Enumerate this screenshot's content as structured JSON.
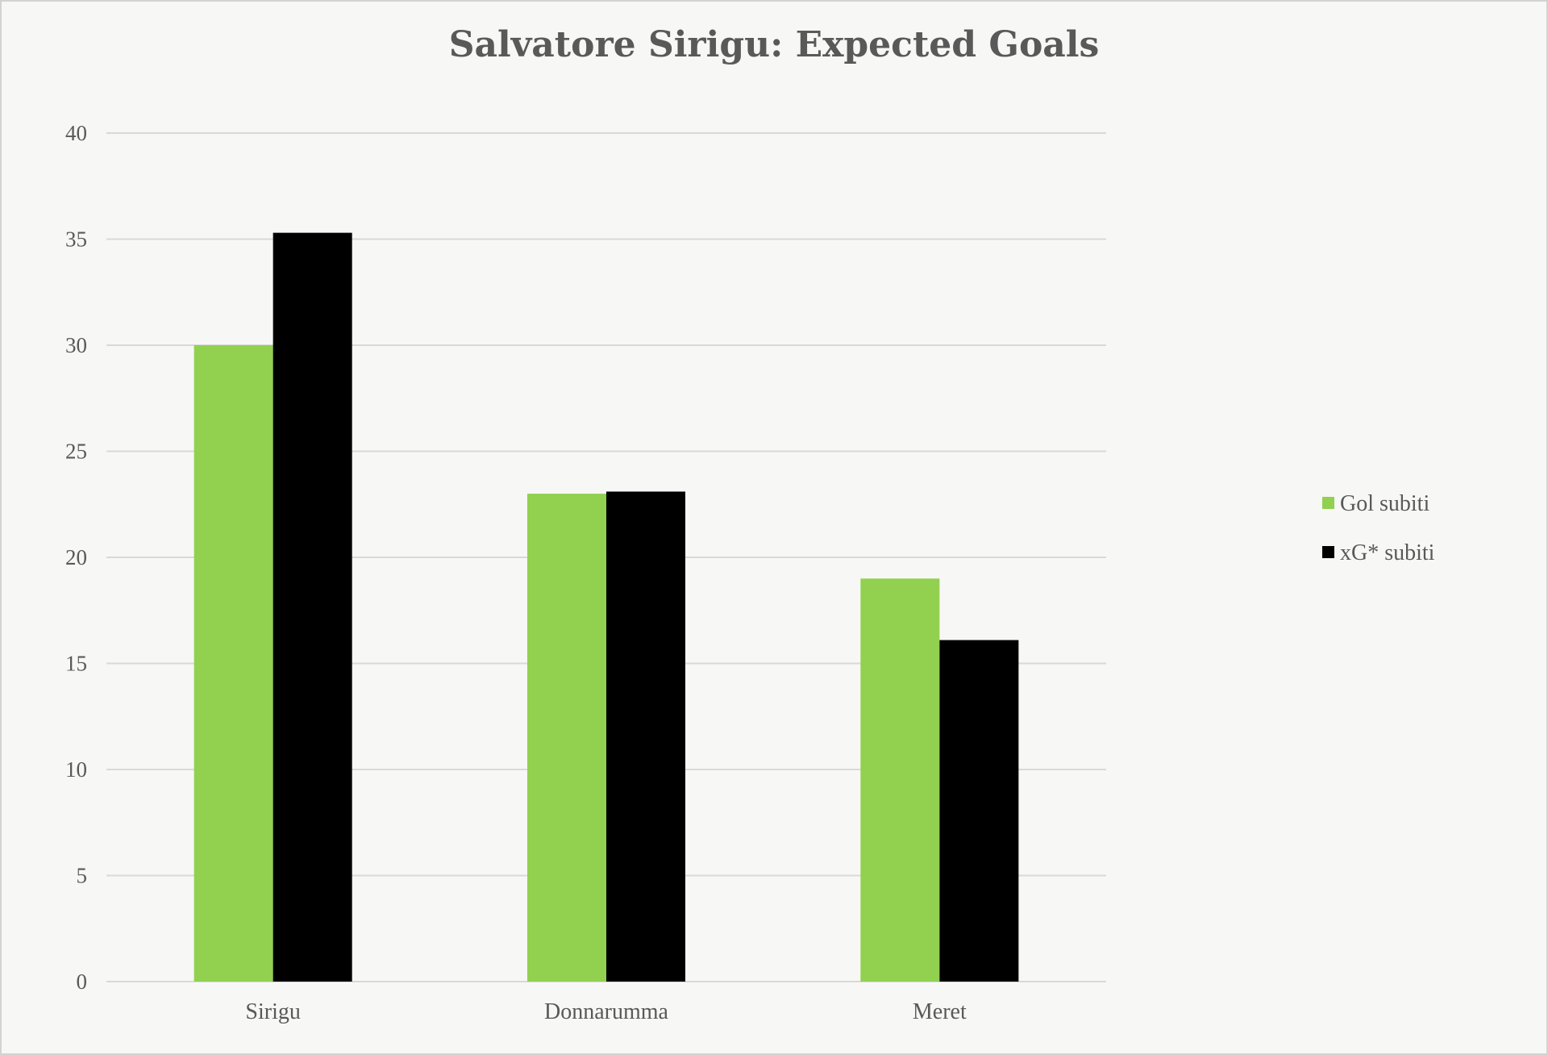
{
  "chart_data": {
    "type": "bar",
    "title": "Salvatore Sirigu: Expected Goals",
    "xlabel": "",
    "ylabel": "",
    "categories": [
      "Sirigu",
      "Donnarumma",
      "Meret"
    ],
    "series": [
      {
        "name": "Gol subiti",
        "values": [
          30,
          23,
          19
        ],
        "color": "#92d050"
      },
      {
        "name": "xG* subiti",
        "values": [
          35.3,
          23.1,
          16.1
        ],
        "color": "#000000"
      }
    ],
    "ylim": [
      0,
      40
    ],
    "yticks": [
      0,
      5,
      10,
      15,
      20,
      25,
      30,
      35,
      40
    ],
    "grid": true,
    "legend_position": "right"
  }
}
